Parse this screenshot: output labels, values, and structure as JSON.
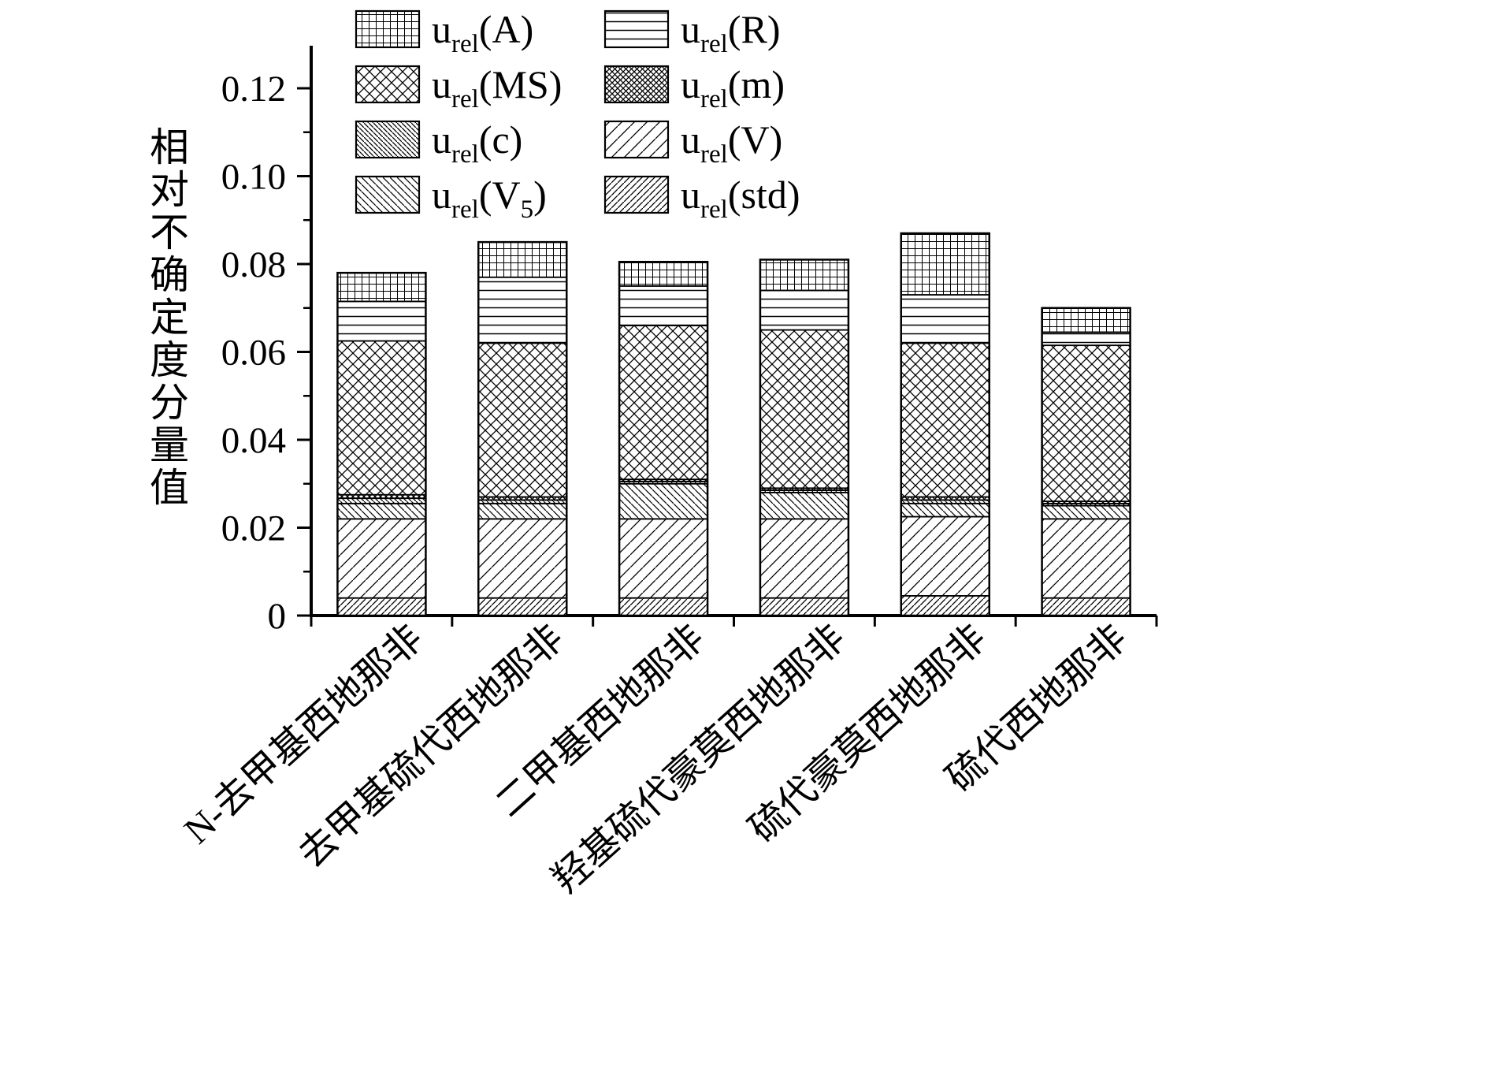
{
  "chart_data": {
    "type": "bar",
    "stacked": true,
    "title": "",
    "xlabel": "",
    "ylabel": "相对不确定度分量值",
    "ylim": [
      0,
      0.13
    ],
    "grid": false,
    "legend_position": "top",
    "yticks": [
      "0",
      "0.02",
      "0.04",
      "0.06",
      "0.08",
      "0.10",
      "0.12"
    ],
    "ytick_values": [
      0,
      0.02,
      0.04,
      0.06,
      0.08,
      0.1,
      0.12
    ],
    "categories": [
      "N-去甲基西地那非",
      "去甲基硫代西地那非",
      "二甲基西地那非",
      "羟基硫代豪莫西地那非",
      "硫代豪莫西地那非",
      "硫代西地那非"
    ],
    "stack_order_bottom_to_top": [
      "std",
      "V",
      "V5",
      "c",
      "m",
      "MS",
      "R",
      "A"
    ],
    "legend_order": [
      "A",
      "R",
      "MS",
      "m",
      "c",
      "V",
      "V5",
      "std"
    ],
    "series": {
      "A": {
        "label_base": "u",
        "label_sub": "rel",
        "label_tail": "(A)",
        "pattern": "grid",
        "values": [
          0.0065,
          0.008,
          0.0055,
          0.007,
          0.014,
          0.0055
        ]
      },
      "R": {
        "label_base": "u",
        "label_sub": "rel",
        "label_tail": "(R)",
        "pattern": "hlines",
        "values": [
          0.009,
          0.015,
          0.009,
          0.009,
          0.011,
          0.003
        ]
      },
      "MS": {
        "label_base": "u",
        "label_sub": "rel",
        "label_tail": "(MS)",
        "pattern": "crosshatch",
        "values": [
          0.035,
          0.035,
          0.035,
          0.036,
          0.035,
          0.0355
        ]
      },
      "m": {
        "label_base": "u",
        "label_sub": "rel",
        "label_tail": "(m)",
        "pattern": "crosshatch-dense",
        "values": [
          0.0008,
          0.0007,
          0.0005,
          0.0005,
          0.0007,
          0.0005
        ]
      },
      "c": {
        "label_base": "u",
        "label_sub": "rel",
        "label_tail": "(c)",
        "pattern": "backslash-dense",
        "values": [
          0.0012,
          0.0008,
          0.0005,
          0.0005,
          0.0008,
          0.0005
        ]
      },
      "V": {
        "label_base": "u",
        "label_sub": "rel",
        "label_tail": "(V)",
        "pattern": "slash",
        "values": [
          0.018,
          0.018,
          0.018,
          0.018,
          0.018,
          0.018
        ]
      },
      "V5": {
        "label_base": "u",
        "label_sub": "rel",
        "label_tail": "(V",
        "label_tail_sub": "5",
        "label_tail2": ")",
        "pattern": "backslash",
        "values": [
          0.0035,
          0.0035,
          0.008,
          0.006,
          0.003,
          0.003
        ]
      },
      "std": {
        "label_base": "u",
        "label_sub": "rel",
        "label_tail": "(std)",
        "pattern": "slash-dense",
        "values": [
          0.004,
          0.004,
          0.004,
          0.004,
          0.0045,
          0.004
        ]
      }
    },
    "colors": {
      "stroke": "#000000",
      "background": "#ffffff"
    }
  }
}
